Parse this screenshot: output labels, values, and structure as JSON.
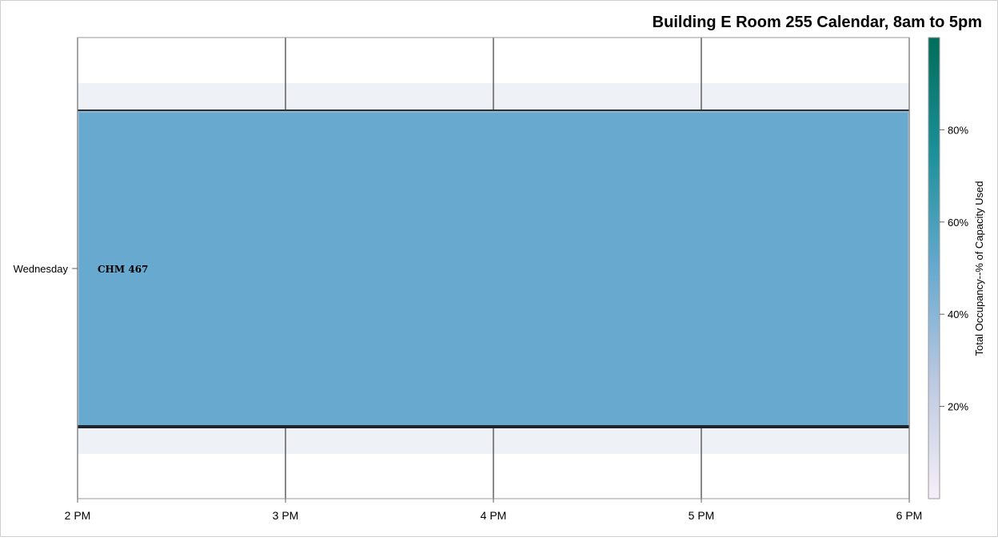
{
  "chart_data": {
    "type": "bar",
    "title": "Building E Room 255 Calendar, 8am to 5pm",
    "x_ticks": [
      "2 PM",
      "3 PM",
      "4 PM",
      "5 PM",
      "6 PM"
    ],
    "x_range": [
      14,
      18
    ],
    "categories": [
      "Wednesday"
    ],
    "bars": [
      {
        "category": "Wednesday",
        "label": "CHM 467",
        "start": 14,
        "end": 18,
        "occupancy": 52,
        "color": "#67a9cf"
      }
    ],
    "colorbar": {
      "label": "Total Occupancy--% of Capacity Used",
      "ticks": [
        "20%",
        "40%",
        "60%",
        "80%"
      ],
      "tick_values": [
        20,
        40,
        60,
        80
      ],
      "range": [
        0,
        100
      ],
      "colors": [
        "#f6eff7",
        "#bdc9e1",
        "#67a9cf",
        "#1c9099",
        "#016c59"
      ]
    },
    "grid": true
  }
}
